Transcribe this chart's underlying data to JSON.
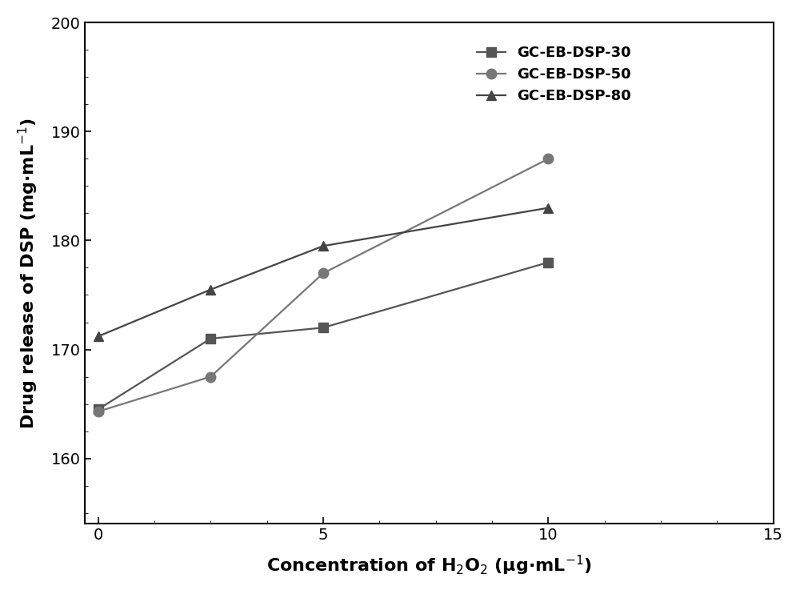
{
  "x": [
    0,
    2.5,
    5,
    10
  ],
  "series": [
    {
      "label": "GC-EB-DSP-30",
      "y": [
        164.5,
        171.0,
        172.0,
        178.0
      ],
      "marker": "s",
      "color": "#555555"
    },
    {
      "label": "GC-EB-DSP-50",
      "y": [
        164.3,
        167.5,
        177.0,
        187.5
      ],
      "marker": "o",
      "color": "#777777"
    },
    {
      "label": "GC-EB-DSP-80",
      "y": [
        171.2,
        175.5,
        179.5,
        183.0
      ],
      "marker": "^",
      "color": "#444444"
    }
  ],
  "xlabel": "Concentration of H$_2$O$_2$ (μg·mL$^{-1}$)",
  "ylabel": "Drug release of DSP (mg·mL$^{-1}$)",
  "xlim": [
    -0.3,
    15
  ],
  "ylim": [
    154,
    200
  ],
  "xticks": [
    0,
    5,
    10,
    15
  ],
  "yticks": [
    160,
    170,
    180,
    190,
    200
  ],
  "legend_loc": "upper right",
  "linewidth": 1.6,
  "markersize": 9,
  "label_fontsize": 16,
  "tick_fontsize": 14,
  "legend_fontsize": 13
}
